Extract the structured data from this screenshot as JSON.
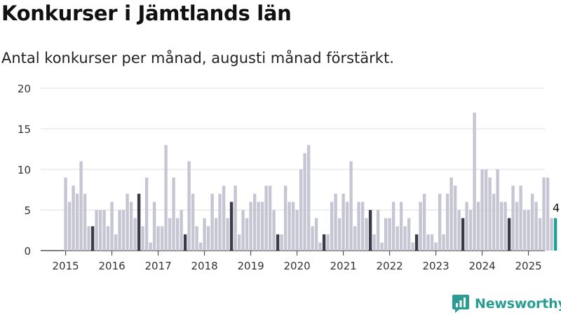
{
  "header": {
    "title": "Konkurser i Jämtlands län",
    "subtitle": "Antal konkurser per månad, augusti månad förstärkt."
  },
  "brand": {
    "name": "Newsworthy"
  },
  "colors": {
    "bar_default": "#c6c5d3",
    "bar_august": "#3a3a48",
    "bar_latest": "#1f9e93",
    "grid": "#dddddd",
    "axis": "#333333",
    "brand": "#2a9d92"
  },
  "chart_data": {
    "type": "bar",
    "title": "Konkurser i Jämtlands län",
    "subtitle": "Antal konkurser per månad, augusti månad förstärkt.",
    "xlabel": "",
    "ylabel": "",
    "ylim": [
      0,
      20
    ],
    "yticks": [
      0,
      5,
      10,
      15,
      20
    ],
    "grid": true,
    "start": "2015-01",
    "x_tick_labels": [
      "2015",
      "2016",
      "2017",
      "2018",
      "2019",
      "2020",
      "2021",
      "2022",
      "2023",
      "2024",
      "2025"
    ],
    "highlight": "augusti",
    "last_value_label": "4",
    "values": [
      9,
      6,
      8,
      7,
      11,
      7,
      3,
      3,
      5,
      5,
      5,
      3,
      6,
      2,
      5,
      5,
      7,
      6,
      4,
      7,
      3,
      9,
      1,
      6,
      3,
      3,
      13,
      4,
      9,
      4,
      5,
      2,
      11,
      7,
      3,
      1,
      4,
      3,
      7,
      4,
      7,
      8,
      4,
      6,
      8,
      2,
      5,
      4,
      6,
      7,
      6,
      6,
      8,
      8,
      5,
      2,
      2,
      8,
      6,
      6,
      5,
      10,
      12,
      13,
      3,
      4,
      1,
      2,
      2,
      6,
      7,
      4,
      7,
      6,
      11,
      3,
      6,
      6,
      4,
      5,
      2,
      5,
      1,
      4,
      4,
      6,
      3,
      6,
      3,
      4,
      1,
      2,
      6,
      7,
      2,
      2,
      1,
      7,
      2,
      7,
      9,
      8,
      5,
      4,
      6,
      5,
      17,
      6,
      10,
      10,
      9,
      7,
      10,
      6,
      6,
      4,
      8,
      6,
      8,
      5,
      5,
      7,
      6,
      4,
      9,
      9,
      4,
      4
    ]
  }
}
